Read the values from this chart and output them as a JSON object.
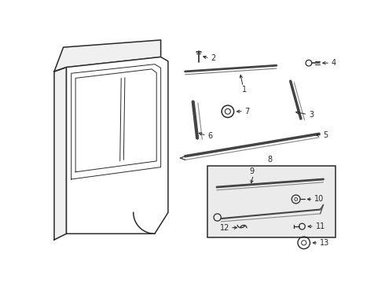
{
  "bg_color": "#ffffff",
  "line_color": "#2a2a2a",
  "box_bg": "#e8e8e8",
  "fig_width": 4.9,
  "fig_height": 3.6,
  "dpi": 100
}
